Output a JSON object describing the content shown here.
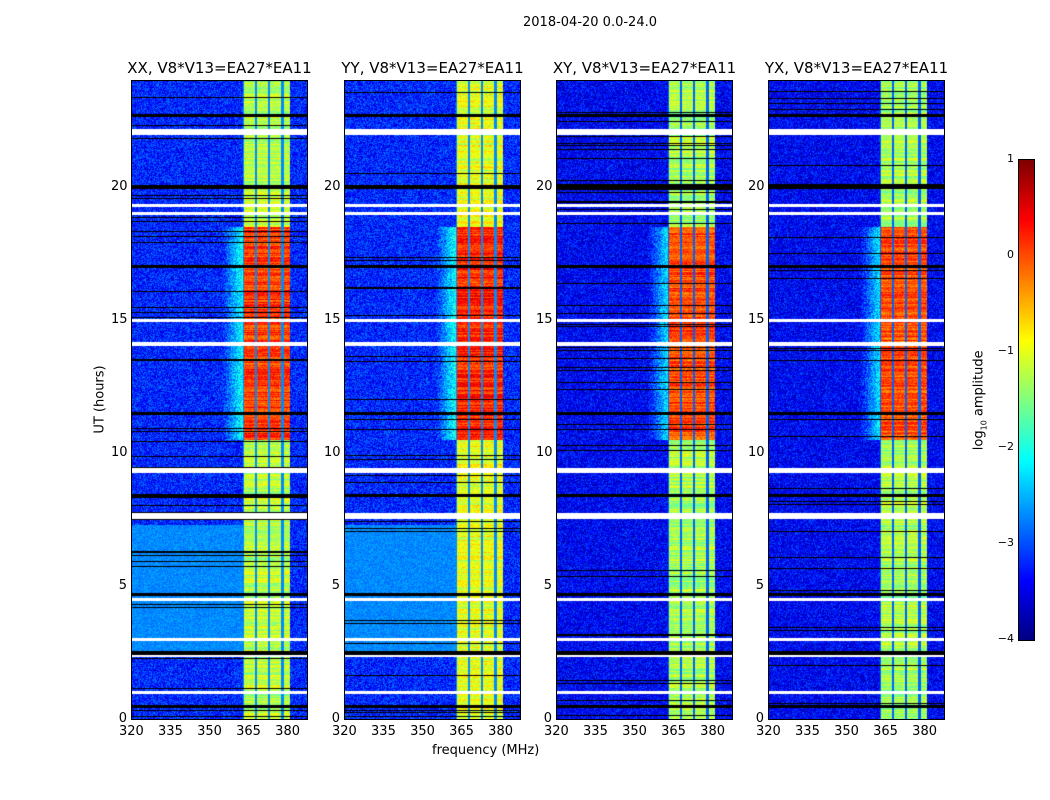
{
  "chart_data": {
    "type": "heatmap",
    "suptitle": "2018-04-20 0.0-24.0",
    "xlabel": "frequency (MHz)",
    "ylabel": "UT (hours)",
    "xlim": [
      320,
      388
    ],
    "ylim": [
      0,
      24
    ],
    "xticks": [
      "320",
      "335",
      "350",
      "365",
      "380"
    ],
    "yticks": [
      "0",
      "5",
      "10",
      "15",
      "20"
    ],
    "panels": [
      {
        "title": "XX, V8*V13=EA27*EA11",
        "band_mhz": [
          363,
          383
        ],
        "band_level_quiet": -1.2,
        "band_level_active": 0.1,
        "background": -3.2,
        "lowfreq_bright_hours": [
          2.5,
          7.3
        ]
      },
      {
        "title": "YY, V8*V13=EA27*EA11",
        "band_mhz": [
          363,
          383
        ],
        "band_level_quiet": -1.0,
        "band_level_active": 0.2,
        "background": -3.2,
        "lowfreq_bright_hours": [
          2.5,
          7.3
        ]
      },
      {
        "title": "XY, V8*V13=EA27*EA11",
        "band_mhz": [
          363,
          383
        ],
        "band_level_quiet": -1.3,
        "band_level_active": 0.0,
        "background": -3.4,
        "lowfreq_bright_hours": null
      },
      {
        "title": "YX, V8*V13=EA27*EA11",
        "band_mhz": [
          363,
          383
        ],
        "band_level_quiet": -1.3,
        "band_level_active": 0.0,
        "background": -3.4,
        "lowfreq_bright_hours": null
      }
    ],
    "active_hours": [
      10.5,
      18.5
    ],
    "flagged_hours": [
      0.5,
      1.0,
      2.4,
      2.5,
      3.0,
      4.5,
      4.7,
      7.6,
      7.7,
      8.4,
      9.3,
      9.4,
      11.5,
      14.1,
      15.0,
      17.0,
      19.0,
      19.3,
      20.0,
      22.0,
      22.1,
      22.7
    ],
    "colorbar": {
      "label": "log10 amplitude",
      "label_main": "log",
      "label_sub": "10",
      "label_rest": " amplitude",
      "range": [
        -4,
        1
      ],
      "ticks": [
        "1",
        "0",
        "−1",
        "−2",
        "−3",
        "−4"
      ],
      "colormap": "jet"
    }
  }
}
